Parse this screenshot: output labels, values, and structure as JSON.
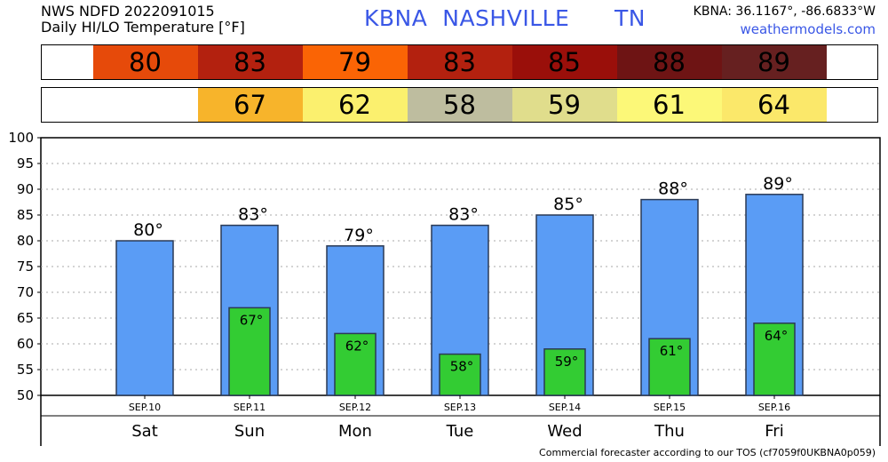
{
  "header": {
    "line1": "NWS NDFD 2022091015",
    "line2": "Daily HI/LO Temperature [°F]",
    "station_title": "KBNA  NASHVILLE      TN",
    "coords": "KBNA: 36.1167°, -86.6833°W",
    "site": "weathermodels.com"
  },
  "footer": {
    "note": "Commercial forecaster according to our TOS (cf7059f0UKBNA0p059)"
  },
  "strips": {
    "hi": [
      {
        "value": "80",
        "color": "#e64a0a"
      },
      {
        "value": "83",
        "color": "#b3210f"
      },
      {
        "value": "79",
        "color": "#fa6405"
      },
      {
        "value": "83",
        "color": "#b3210f"
      },
      {
        "value": "85",
        "color": "#9a0f0a"
      },
      {
        "value": "88",
        "color": "#6e1414"
      },
      {
        "value": "89",
        "color": "#662020"
      }
    ],
    "lo": [
      {
        "value": "",
        "color": "#ffffff"
      },
      {
        "value": "67",
        "color": "#f7b42b"
      },
      {
        "value": "62",
        "color": "#fbf06e"
      },
      {
        "value": "58",
        "color": "#bebd9f"
      },
      {
        "value": "59",
        "color": "#e0dd8c"
      },
      {
        "value": "61",
        "color": "#fcf878"
      },
      {
        "value": "64",
        "color": "#fbe86a"
      }
    ]
  },
  "chart_data": {
    "type": "bar",
    "categories": [
      "SEP.10",
      "SEP.11",
      "SEP.12",
      "SEP.13",
      "SEP.14",
      "SEP.15",
      "SEP.16"
    ],
    "day_labels": [
      "Sat",
      "Sun",
      "Mon",
      "Tue",
      "Wed",
      "Thu",
      "Fri"
    ],
    "series": [
      {
        "values": [
          80,
          83,
          79,
          83,
          85,
          88,
          89
        ],
        "labels": [
          "80°",
          "83°",
          "79°",
          "83°",
          "85°",
          "88°",
          "89°"
        ],
        "color": "#5a9cf5"
      },
      {
        "values": [
          null,
          67,
          62,
          58,
          59,
          61,
          64
        ],
        "labels": [
          "",
          "67°",
          "62°",
          "58°",
          "59°",
          "61°",
          "64°"
        ],
        "color": "#33cc33"
      }
    ],
    "ylim": [
      50,
      100
    ],
    "yticks": [
      "50",
      "55",
      "60",
      "65",
      "70",
      "75",
      "80",
      "85",
      "90",
      "95",
      "100"
    ],
    "grid": true
  }
}
